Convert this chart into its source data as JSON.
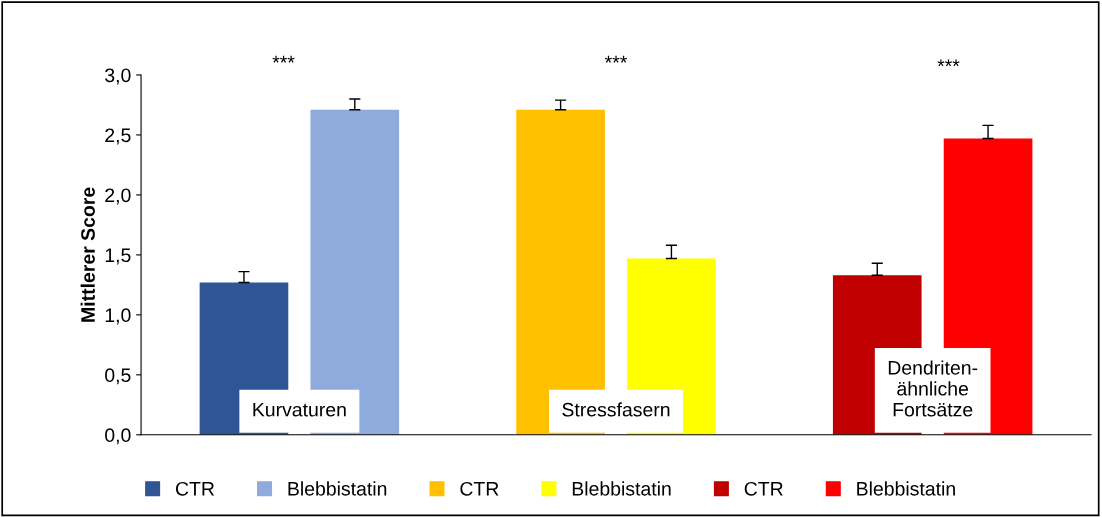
{
  "chart_data": {
    "type": "bar",
    "ylabel": "Mittlerer Score",
    "categories": [
      "Kurvaturen",
      "Stressfasern",
      "Dendriten-\nähnliche\nFortsätze"
    ],
    "series": [
      {
        "name": "CTR",
        "color": "#2f5597",
        "values": [
          1.27,
          null,
          null
        ],
        "errors": [
          [
            1.27,
            1.36
          ],
          null,
          null
        ]
      },
      {
        "name": "Blebbistatin",
        "color": "#8faadc",
        "values": [
          2.71,
          null,
          null
        ],
        "errors": [
          [
            2.71,
            2.8
          ],
          null,
          null
        ]
      },
      {
        "name": "CTR",
        "color": "#ffc000",
        "values": [
          null,
          2.71,
          null
        ],
        "errors": [
          null,
          [
            2.71,
            2.79
          ],
          null
        ]
      },
      {
        "name": "Blebbistatin",
        "color": "#ffff00",
        "values": [
          null,
          1.47,
          null
        ],
        "errors": [
          null,
          [
            1.47,
            1.58
          ],
          null
        ]
      },
      {
        "name": "CTR",
        "color": "#c00000",
        "values": [
          null,
          null,
          1.33
        ],
        "errors": [
          null,
          null,
          [
            1.33,
            1.43
          ]
        ]
      },
      {
        "name": "Blebbistatin",
        "color": "#ff0000",
        "values": [
          null,
          null,
          2.47
        ],
        "errors": [
          null,
          null,
          [
            2.47,
            2.58
          ]
        ]
      }
    ],
    "annotations": [
      "***",
      "***",
      "***"
    ],
    "ylim": [
      0,
      3
    ],
    "yticks": [
      {
        "value": 0,
        "label": "0,0"
      },
      {
        "value": 0.5,
        "label": "0,5"
      },
      {
        "value": 1,
        "label": "1,0"
      },
      {
        "value": 1.5,
        "label": "1,5"
      },
      {
        "value": 2,
        "label": "2,0"
      },
      {
        "value": 2.5,
        "label": "2,5"
      },
      {
        "value": 3,
        "label": "3,0"
      }
    ],
    "grid": false,
    "legend": "bottom"
  }
}
